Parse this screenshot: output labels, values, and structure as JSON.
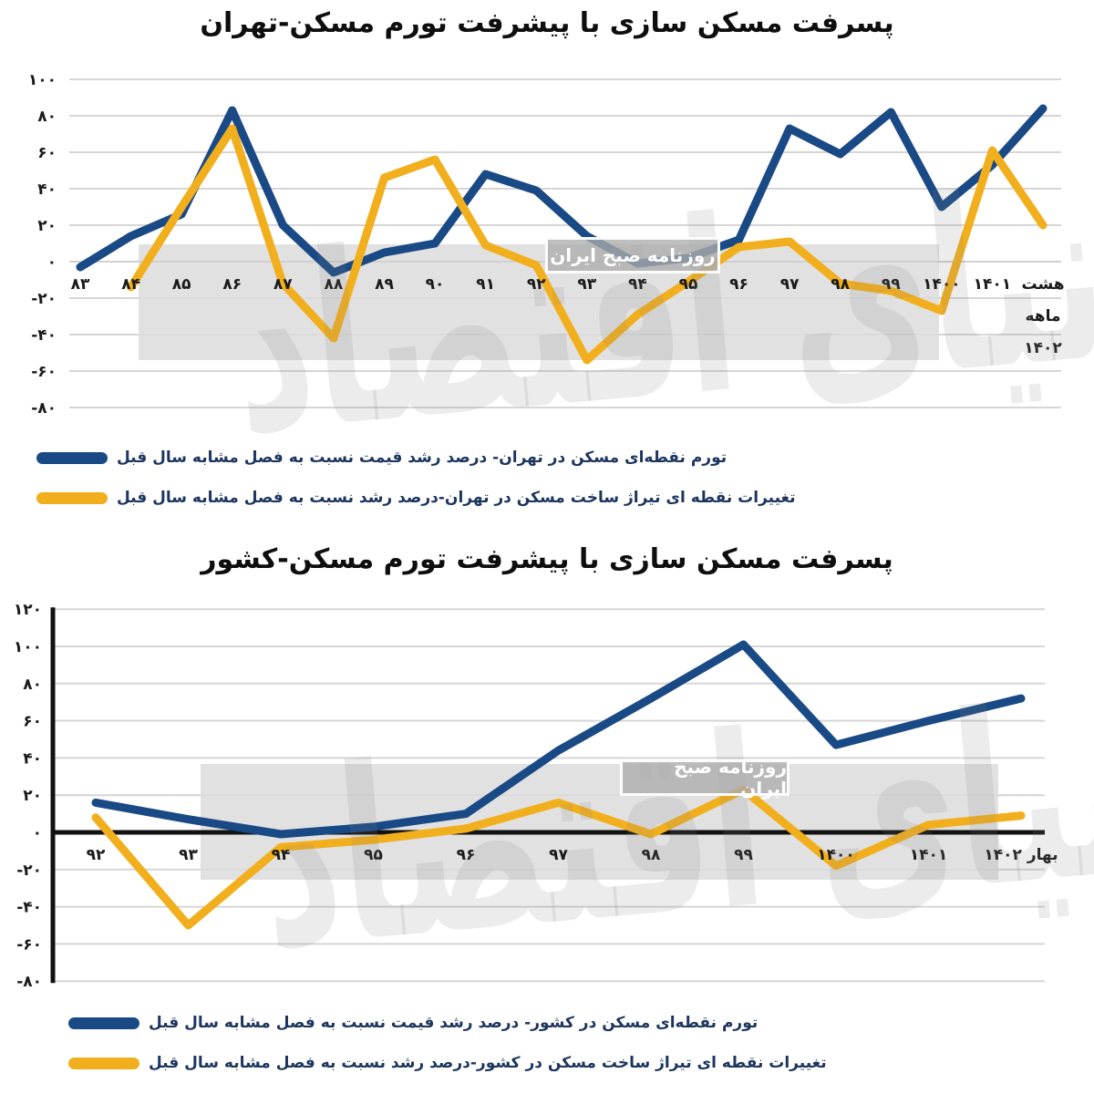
{
  "watermark": {
    "brand_text": "دنیای اقتصاد",
    "badge_text": "روزنامه صبح ایران"
  },
  "chart_data": [
    {
      "type": "line",
      "title": "پسرفت مسکن سازی با پیشرفت تورم مسکن-تهران",
      "categories": [
        "۸۳",
        "۸۴",
        "۸۵",
        "۸۶",
        "۸۷",
        "۸۸",
        "۸۹",
        "۹۰",
        "۹۱",
        "۹۲",
        "۹۳",
        "۹۴",
        "۹۵",
        "۹۶",
        "۹۷",
        "۹۸",
        "۹۹",
        "۱۴۰۰",
        "۱۴۰۱",
        "هشت\nماهه\n۱۴۰۲"
      ],
      "series": [
        {
          "name": "تورم نقطه‌ای مسکن در تهران- درصد رشد قیمت نسبت به فصل مشابه سال قبل",
          "color": "#1A4A85",
          "values": [
            -3,
            14,
            26,
            83,
            20,
            -6,
            5,
            10,
            48,
            39,
            14,
            -1,
            2,
            12,
            73,
            59,
            82,
            30,
            53,
            84
          ]
        },
        {
          "name": "تغییرات نقطه ای تیراژ ساخت مسکن در تهران-درصد رشد نسبت به فصل مشابه سال قبل",
          "color": "#F2AF1D",
          "values": [
            null,
            -14,
            30,
            73,
            -12,
            -42,
            46,
            56,
            9,
            -2,
            -54,
            -29,
            -11,
            8,
            11,
            -12,
            -16,
            -27,
            61,
            20
          ]
        }
      ],
      "xlabel": "",
      "ylabel": "",
      "ylim": [
        -80,
        100
      ],
      "ytick_step": 20,
      "ytick_labels": [
        "۱۰۰",
        "۸۰",
        "۶۰",
        "۴۰",
        "۲۰",
        "۰",
        "-۲۰",
        "-۴۰",
        "-۶۰",
        "-۸۰"
      ],
      "grid": true,
      "legend_position": "bottom-left"
    },
    {
      "type": "line",
      "title": "پسرفت مسکن سازی با پیشرفت تورم مسکن-کشور",
      "categories": [
        "۹۲",
        "۹۳",
        "۹۴",
        "۹۵",
        "۹۶",
        "۹۷",
        "۹۸",
        "۹۹",
        "۱۴۰۰",
        "۱۴۰۱",
        "بهار ۱۴۰۲"
      ],
      "series": [
        {
          "name": "تورم نقطه‌ای مسکن در کشور- درصد رشد قیمت نسبت به فصل مشابه سال قبل",
          "color": "#1A4A85",
          "values": [
            16,
            7,
            -1,
            3,
            10,
            44,
            72,
            101,
            47,
            60,
            72
          ]
        },
        {
          "name": "تغییرات نقطه ای تیراژ ساخت مسکن در کشور-درصد رشد نسبت به فصل مشابه سال قبل",
          "color": "#F2AF1D",
          "values": [
            8,
            -50,
            -8,
            -4,
            2,
            16,
            -1,
            23,
            -18,
            4,
            9
          ]
        }
      ],
      "xlabel": "",
      "ylabel": "",
      "ylim": [
        -80,
        120
      ],
      "ytick_step": 20,
      "ytick_labels": [
        "۱۲۰",
        "۱۰۰",
        "۸۰",
        "۶۰",
        "۴۰",
        "۲۰",
        "۰",
        "-۲۰",
        "-۴۰",
        "-۶۰",
        "-۸۰"
      ],
      "grid": true,
      "legend_position": "bottom-left"
    }
  ]
}
